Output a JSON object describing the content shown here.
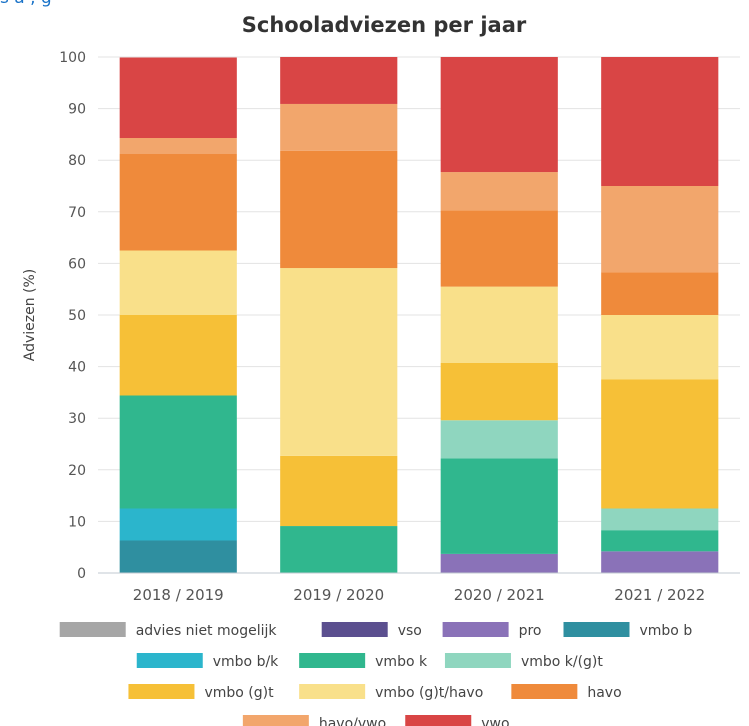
{
  "header_fragment": "s     a   ,           g",
  "chart_data": {
    "type": "bar",
    "stacked": true,
    "title": "Schooladviezen per jaar",
    "xlabel": "",
    "ylabel": "Adviezen (%)",
    "ylim": [
      0,
      100
    ],
    "yticks": [
      0,
      10,
      20,
      30,
      40,
      50,
      60,
      70,
      80,
      90,
      100
    ],
    "grid": true,
    "legend_position": "bottom",
    "categories": [
      "2018 / 2019",
      "2019 / 2020",
      "2020 / 2021",
      "2021 / 2022"
    ],
    "series": [
      {
        "name": "advies niet mogelijk",
        "color": "#a6a6a6",
        "values": [
          0,
          0,
          0,
          0
        ]
      },
      {
        "name": "vso",
        "color": "#5b4f8f",
        "values": [
          0,
          0,
          0,
          0
        ]
      },
      {
        "name": "pro",
        "color": "#8a72b8",
        "values": [
          0,
          0,
          3.7,
          4.2
        ]
      },
      {
        "name": "vmbo b",
        "color": "#2f8fa0",
        "values": [
          6.3,
          0,
          0,
          0
        ]
      },
      {
        "name": "vmbo b/k",
        "color": "#2bb5cc",
        "values": [
          6.2,
          0,
          0,
          0
        ]
      },
      {
        "name": "vmbo k",
        "color": "#30b78e",
        "values": [
          21.9,
          9.1,
          18.5,
          4.1
        ]
      },
      {
        "name": "vmbo k/(g)t",
        "color": "#8fd6bf",
        "values": [
          0,
          0,
          7.4,
          4.2
        ]
      },
      {
        "name": "vmbo (g)t",
        "color": "#f6c037",
        "values": [
          15.6,
          13.6,
          11.1,
          25.0
        ]
      },
      {
        "name": "vmbo (g)t/havo",
        "color": "#f9e08a",
        "values": [
          12.5,
          36.4,
          14.8,
          12.5
        ]
      },
      {
        "name": "havo",
        "color": "#ef8a3b",
        "values": [
          18.7,
          22.7,
          14.8,
          8.3
        ]
      },
      {
        "name": "havo/vwo",
        "color": "#f2a66c",
        "values": [
          3.1,
          9.1,
          7.4,
          16.7
        ]
      },
      {
        "name": "vwo",
        "color": "#d94545",
        "values": [
          15.6,
          9.1,
          22.3,
          25.0
        ]
      }
    ]
  }
}
